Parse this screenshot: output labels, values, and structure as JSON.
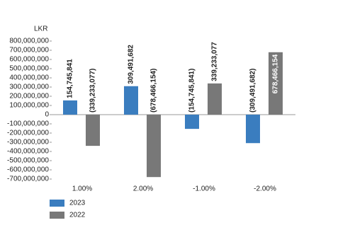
{
  "chart_data": {
    "type": "bar",
    "y_unit_label": "LKR",
    "categories": [
      "1.00%",
      "2.00%",
      "-1.00%",
      "-2.00%"
    ],
    "series": [
      {
        "name": "2023",
        "color": "#3a7dbf",
        "values": [
          154745841,
          309491682,
          -154745841,
          -309491682
        ],
        "value_labels": [
          "154,745,841",
          "309,491,682",
          "(154,745,841)",
          "(309,491,682)"
        ]
      },
      {
        "name": "2022",
        "color": "#787878",
        "values": [
          -339233077,
          -678466154,
          339233077,
          678466154
        ],
        "value_labels": [
          "(339,233,077)",
          "(678,466,154)",
          "339,233,077",
          "678,466,154"
        ]
      }
    ],
    "ylim": [
      -700000000,
      800000000
    ],
    "yticks": [
      {
        "value": -700000000,
        "label": "-700,000,000"
      },
      {
        "value": -600000000,
        "label": "-600,000,000"
      },
      {
        "value": -500000000,
        "label": "-500,000,000"
      },
      {
        "value": -400000000,
        "label": "-400,000,000"
      },
      {
        "value": -300000000,
        "label": "-300,000,000"
      },
      {
        "value": -200000000,
        "label": "-200,000,000"
      },
      {
        "value": -100000000,
        "label": "-100,000,000"
      },
      0,
      {
        "value": 100000000,
        "label": "100,000,000"
      },
      {
        "value": 200000000,
        "label": "200,000,000"
      },
      {
        "value": 300000000,
        "label": "300,000,000"
      },
      {
        "value": 400000000,
        "label": "400,000,000"
      },
      {
        "value": 500000000,
        "label": "500,000,000"
      },
      {
        "value": 600000000,
        "label": "600,000,000"
      },
      {
        "value": 700000000,
        "label": "700,000,000"
      },
      {
        "value": 800000000,
        "label": "800,000,000"
      }
    ]
  }
}
